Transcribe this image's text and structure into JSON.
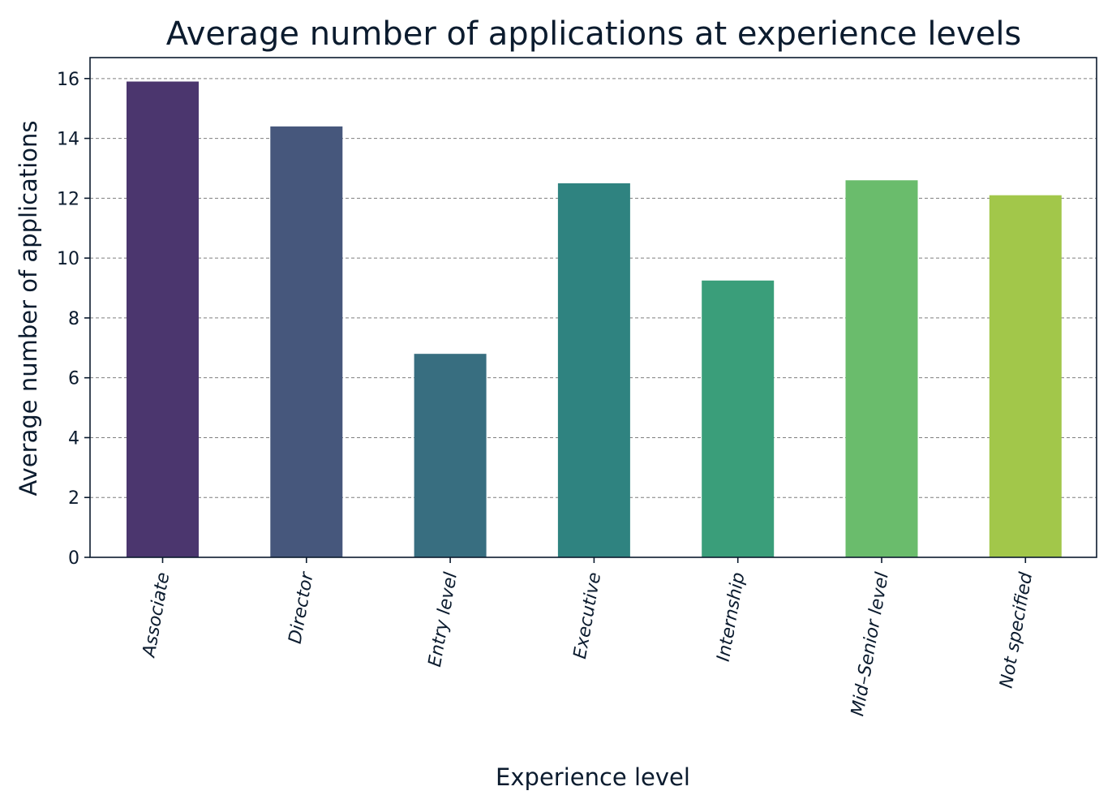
{
  "chart_data": {
    "type": "bar",
    "title": "Average number of applications at experience levels",
    "xlabel": "Experience level",
    "ylabel": "Average number of applications",
    "categories": [
      "Associate",
      "Director",
      "Entry level",
      "Executive",
      "Internship",
      "Mid–Senior level",
      "Not specified"
    ],
    "values": [
      15.9,
      14.4,
      6.8,
      12.5,
      9.25,
      12.6,
      12.1
    ],
    "colors": [
      "#4b366e",
      "#46577c",
      "#386e80",
      "#2f8380",
      "#3a9e7a",
      "#6abc6c",
      "#a2c74a"
    ],
    "ylim": [
      0,
      16.7
    ],
    "yticks": [
      0,
      2,
      4,
      6,
      8,
      10,
      12,
      14,
      16
    ],
    "grid": "horizontal dashed",
    "legend": "none"
  }
}
